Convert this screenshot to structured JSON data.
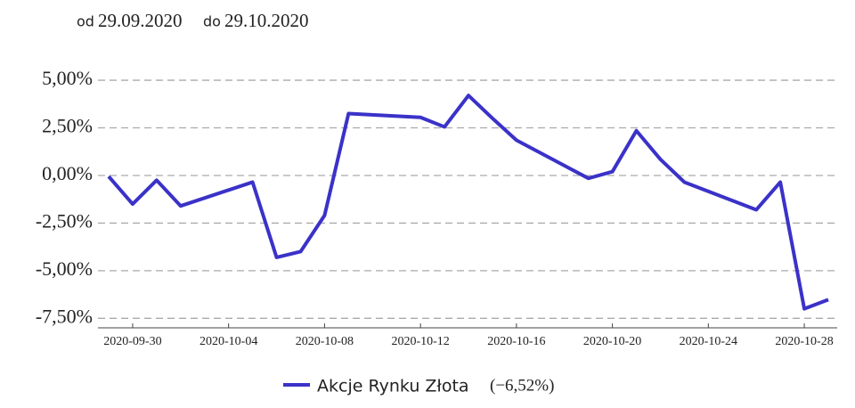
{
  "header": {
    "from_label": "od",
    "from_date": "29.09.2020",
    "to_label": "do",
    "to_date": "29.10.2020"
  },
  "chart_data": {
    "type": "line",
    "x": [
      "2020-09-29",
      "2020-09-30",
      "2020-10-01",
      "2020-10-02",
      "2020-10-05",
      "2020-10-06",
      "2020-10-07",
      "2020-10-08",
      "2020-10-09",
      "2020-10-12",
      "2020-10-13",
      "2020-10-14",
      "2020-10-15",
      "2020-10-16",
      "2020-10-19",
      "2020-10-20",
      "2020-10-21",
      "2020-10-22",
      "2020-10-23",
      "2020-10-26",
      "2020-10-27",
      "2020-10-28",
      "2020-10-29"
    ],
    "series": [
      {
        "name": "Akcje Rynku Złota",
        "change_label": "(−6,52%)",
        "color": "#3a32c8",
        "values": [
          -0.05,
          -1.5,
          -0.25,
          -1.6,
          -0.35,
          -4.3,
          -4.0,
          -2.1,
          3.25,
          3.05,
          2.55,
          4.2,
          3.0,
          1.85,
          -0.15,
          0.2,
          2.35,
          0.85,
          -0.35,
          -1.8,
          -0.35,
          -7.0,
          -6.52
        ]
      }
    ],
    "xlim": [
      "2020-09-29",
      "2020-10-29"
    ],
    "xticks": [
      "2020-09-30",
      "2020-10-04",
      "2020-10-08",
      "2020-10-12",
      "2020-10-16",
      "2020-10-20",
      "2020-10-24",
      "2020-10-28"
    ],
    "ylim": [
      -8,
      6.5
    ],
    "yticks": [
      {
        "value": -7.5,
        "label": "-7,50%"
      },
      {
        "value": -5,
        "label": "-5,00%"
      },
      {
        "value": -2.5,
        "label": "-2,50%"
      },
      {
        "value": 0,
        "label": "0,00%"
      },
      {
        "value": 2.5,
        "label": "2,50%"
      },
      {
        "value": 5,
        "label": "5,00%"
      }
    ],
    "grid": true
  }
}
